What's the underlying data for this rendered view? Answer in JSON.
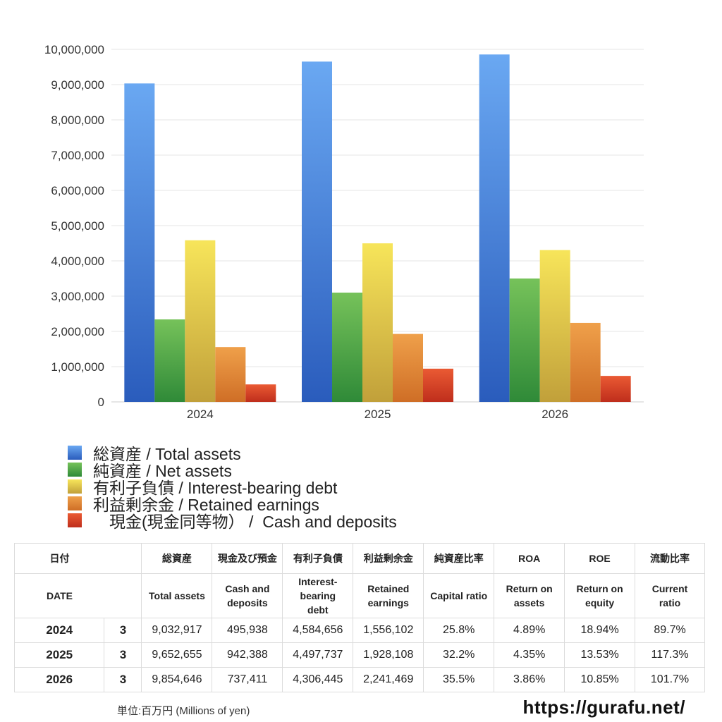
{
  "chart_data": {
    "type": "bar",
    "categories": [
      "2024",
      "2025",
      "2026"
    ],
    "series": [
      {
        "name": "総資産 / Total assets",
        "values": [
          9032917,
          9652655,
          9854646
        ],
        "color_top": "#6aa8f2",
        "color_bottom": "#2a5cbc"
      },
      {
        "name": "純資産 / Net assets",
        "values": [
          2340000,
          3100000,
          3500000
        ],
        "color_top": "#76c25a",
        "color_bottom": "#2f8a38"
      },
      {
        "name": "有利子負債 / Interest-bearing debt",
        "values": [
          4584656,
          4497737,
          4306445
        ],
        "color_top": "#f7e55a",
        "color_bottom": "#c1a03a"
      },
      {
        "name": "利益剰余金 / Retained earnings",
        "values": [
          1556102,
          1928108,
          2241469
        ],
        "color_top": "#efa04a",
        "color_bottom": "#cf6e26"
      },
      {
        "name": "　現金(現金同等物） /  Cash and deposits",
        "values": [
          495938,
          942388,
          737411
        ],
        "color_top": "#ea5a33",
        "color_bottom": "#bf2e1c"
      }
    ],
    "ylim": [
      0,
      10000000
    ],
    "yticks": [
      "0",
      "1,000,000",
      "2,000,000",
      "3,000,000",
      "4,000,000",
      "5,000,000",
      "6,000,000",
      "7,000,000",
      "8,000,000",
      "9,000,000",
      "10,000,000"
    ],
    "grid": true,
    "legend_position": "bottom-left"
  },
  "table": {
    "header_ja": [
      "日付",
      "",
      "総資産",
      "現金及び預金",
      "有利子負債",
      "利益剰余金",
      "純資産比率",
      "ROA",
      "ROE",
      "流動比率"
    ],
    "header_en": [
      "DATE",
      "",
      "Total assets",
      "Cash and deposits",
      "Interest-bearing debt",
      "Retained earnings",
      "Capital ratio",
      "Return on assets",
      "Return on equity",
      "Current ratio"
    ],
    "rows": [
      [
        "2024",
        "3",
        "9,032,917",
        "495,938",
        "4,584,656",
        "1,556,102",
        "25.8%",
        "4.89%",
        "18.94%",
        "89.7%"
      ],
      [
        "2025",
        "3",
        "9,652,655",
        "942,388",
        "4,497,737",
        "1,928,108",
        "32.2%",
        "4.35%",
        "13.53%",
        "117.3%"
      ],
      [
        "2026",
        "3",
        "9,854,646",
        "737,411",
        "4,306,445",
        "2,241,469",
        "35.5%",
        "3.86%",
        "10.85%",
        "101.7%"
      ]
    ]
  },
  "footer": {
    "unit": "単位:百万円 (Millions of yen)",
    "site": "https://gurafu.net/"
  }
}
